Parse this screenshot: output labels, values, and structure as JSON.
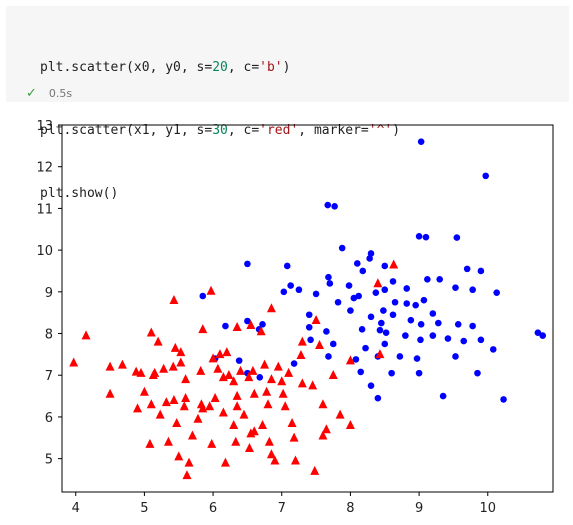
{
  "notebook": {
    "code_lines": [
      [
        {
          "t": "plt.scatter(x0, y0, s=",
          "c": ""
        },
        {
          "t": "20",
          "c": "kw"
        },
        {
          "t": ", c=",
          "c": ""
        },
        {
          "t": "'b'",
          "c": "str"
        },
        {
          "t": ")",
          "c": ""
        }
      ],
      [
        {
          "t": "plt.scatter(x1, y1, s=",
          "c": ""
        },
        {
          "t": "30",
          "c": "kw"
        },
        {
          "t": ", c=",
          "c": ""
        },
        {
          "t": "'red'",
          "c": "str"
        },
        {
          "t": ", marker=",
          "c": ""
        },
        {
          "t": "'^'",
          "c": "str"
        },
        {
          "t": ")",
          "c": ""
        }
      ],
      [
        {
          "t": "plt.show()",
          "c": ""
        }
      ]
    ],
    "status_icon": "check-icon",
    "status_time": "0.5s"
  },
  "chart_data": {
    "type": "scatter",
    "title": "",
    "xlabel": "",
    "ylabel": "",
    "xlim": [
      3.8,
      10.95
    ],
    "ylim": [
      4.2,
      13.0
    ],
    "xticks": [
      4,
      5,
      6,
      7,
      8,
      9,
      10
    ],
    "yticks": [
      5,
      6,
      7,
      8,
      9,
      10,
      11,
      12,
      13
    ],
    "grid": false,
    "series": [
      {
        "color": "#0000ff",
        "marker": "circle",
        "points": [
          [
            9.03,
            12.6
          ],
          [
            9.97,
            11.78
          ],
          [
            7.67,
            11.08
          ],
          [
            7.77,
            11.05
          ],
          [
            9.0,
            10.33
          ],
          [
            9.1,
            10.31
          ],
          [
            9.55,
            10.3
          ],
          [
            7.88,
            10.05
          ],
          [
            8.3,
            9.92
          ],
          [
            8.28,
            9.8
          ],
          [
            6.5,
            9.67
          ],
          [
            7.08,
            9.62
          ],
          [
            8.1,
            9.68
          ],
          [
            8.5,
            9.62
          ],
          [
            9.7,
            9.55
          ],
          [
            9.9,
            9.5
          ],
          [
            7.68,
            9.35
          ],
          [
            8.62,
            9.25
          ],
          [
            9.12,
            9.3
          ],
          [
            9.3,
            9.3
          ],
          [
            8.18,
            9.5
          ],
          [
            7.03,
            9.0
          ],
          [
            7.13,
            9.15
          ],
          [
            7.25,
            9.05
          ],
          [
            7.5,
            8.95
          ],
          [
            7.7,
            9.2
          ],
          [
            7.98,
            9.15
          ],
          [
            8.5,
            9.05
          ],
          [
            8.82,
            9.08
          ],
          [
            9.53,
            9.1
          ],
          [
            9.78,
            9.05
          ],
          [
            10.13,
            8.98
          ],
          [
            5.85,
            8.9
          ],
          [
            8.05,
            8.85
          ],
          [
            8.12,
            8.9
          ],
          [
            8.37,
            8.98
          ],
          [
            8.65,
            8.75
          ],
          [
            8.82,
            8.72
          ],
          [
            8.48,
            8.55
          ],
          [
            9.07,
            8.8
          ],
          [
            9.2,
            8.48
          ],
          [
            8.3,
            8.4
          ],
          [
            8.45,
            8.25
          ],
          [
            8.62,
            8.45
          ],
          [
            8.95,
            8.68
          ],
          [
            7.82,
            8.75
          ],
          [
            6.5,
            8.3
          ],
          [
            6.72,
            8.22
          ],
          [
            7.4,
            8.45
          ],
          [
            8.0,
            8.55
          ],
          [
            8.88,
            8.32
          ],
          [
            9.03,
            8.22
          ],
          [
            9.28,
            8.25
          ],
          [
            9.57,
            8.22
          ],
          [
            9.78,
            8.18
          ],
          [
            6.18,
            8.18
          ],
          [
            6.67,
            8.1
          ],
          [
            7.4,
            8.15
          ],
          [
            7.65,
            8.05
          ],
          [
            8.17,
            8.1
          ],
          [
            8.43,
            8.08
          ],
          [
            8.52,
            8.02
          ],
          [
            8.8,
            7.95
          ],
          [
            9.2,
            7.95
          ],
          [
            9.9,
            7.85
          ],
          [
            10.73,
            8.02
          ],
          [
            10.8,
            7.95
          ],
          [
            7.42,
            7.85
          ],
          [
            7.75,
            7.75
          ],
          [
            8.22,
            7.65
          ],
          [
            8.5,
            7.75
          ],
          [
            9.02,
            7.85
          ],
          [
            9.42,
            7.88
          ],
          [
            9.65,
            7.82
          ],
          [
            10.08,
            7.62
          ],
          [
            7.68,
            7.45
          ],
          [
            8.08,
            7.38
          ],
          [
            8.4,
            7.45
          ],
          [
            8.72,
            7.45
          ],
          [
            8.97,
            7.4
          ],
          [
            9.53,
            7.45
          ],
          [
            6.03,
            7.4
          ],
          [
            6.38,
            7.35
          ],
          [
            7.18,
            7.28
          ],
          [
            8.15,
            7.08
          ],
          [
            8.6,
            7.05
          ],
          [
            9.0,
            7.05
          ],
          [
            9.85,
            7.05
          ],
          [
            6.5,
            7.05
          ],
          [
            6.68,
            6.95
          ],
          [
            8.3,
            6.75
          ],
          [
            8.4,
            6.45
          ],
          [
            9.35,
            6.5
          ],
          [
            10.23,
            6.42
          ]
        ]
      },
      {
        "color": "#ff0000",
        "marker": "triangle-up",
        "points": [
          [
            5.43,
            8.8
          ],
          [
            5.97,
            9.02
          ],
          [
            6.85,
            8.6
          ],
          [
            7.5,
            8.32
          ],
          [
            8.63,
            9.65
          ],
          [
            8.4,
            9.2
          ],
          [
            4.15,
            7.95
          ],
          [
            5.1,
            8.02
          ],
          [
            5.85,
            8.1
          ],
          [
            6.35,
            8.15
          ],
          [
            6.55,
            8.2
          ],
          [
            6.7,
            8.05
          ],
          [
            5.2,
            7.8
          ],
          [
            5.45,
            7.65
          ],
          [
            5.53,
            7.55
          ],
          [
            6.2,
            7.55
          ],
          [
            7.3,
            7.8
          ],
          [
            7.55,
            7.72
          ],
          [
            6.0,
            7.4
          ],
          [
            6.1,
            7.5
          ],
          [
            7.28,
            7.48
          ],
          [
            8.43,
            7.5
          ],
          [
            8.0,
            7.35
          ],
          [
            3.97,
            7.3
          ],
          [
            4.5,
            7.2
          ],
          [
            4.68,
            7.25
          ],
          [
            4.88,
            7.08
          ],
          [
            4.95,
            7.05
          ],
          [
            5.15,
            7.05
          ],
          [
            5.28,
            7.15
          ],
          [
            5.42,
            7.2
          ],
          [
            5.53,
            7.3
          ],
          [
            5.82,
            7.1
          ],
          [
            6.07,
            7.15
          ],
          [
            6.23,
            7.0
          ],
          [
            6.4,
            7.1
          ],
          [
            6.58,
            7.1
          ],
          [
            6.75,
            7.25
          ],
          [
            6.95,
            7.2
          ],
          [
            7.1,
            7.05
          ],
          [
            7.75,
            7.0
          ],
          [
            5.13,
            7.0
          ],
          [
            5.6,
            6.9
          ],
          [
            6.15,
            6.95
          ],
          [
            6.3,
            6.85
          ],
          [
            6.52,
            6.95
          ],
          [
            6.85,
            6.9
          ],
          [
            7.0,
            6.85
          ],
          [
            7.3,
            6.8
          ],
          [
            7.45,
            6.75
          ],
          [
            4.5,
            6.55
          ],
          [
            5.0,
            6.6
          ],
          [
            5.43,
            6.4
          ],
          [
            5.6,
            6.45
          ],
          [
            5.83,
            6.3
          ],
          [
            6.03,
            6.45
          ],
          [
            6.35,
            6.5
          ],
          [
            6.6,
            6.55
          ],
          [
            6.78,
            6.6
          ],
          [
            7.02,
            6.55
          ],
          [
            7.6,
            6.3
          ],
          [
            4.9,
            6.2
          ],
          [
            5.1,
            6.3
          ],
          [
            5.32,
            6.35
          ],
          [
            5.58,
            6.25
          ],
          [
            5.85,
            6.2
          ],
          [
            5.95,
            6.25
          ],
          [
            6.15,
            6.1
          ],
          [
            6.35,
            6.25
          ],
          [
            6.45,
            6.05
          ],
          [
            6.8,
            6.3
          ],
          [
            7.05,
            6.25
          ],
          [
            5.23,
            6.05
          ],
          [
            5.47,
            5.85
          ],
          [
            5.78,
            5.95
          ],
          [
            6.3,
            5.8
          ],
          [
            6.55,
            5.6
          ],
          [
            6.72,
            5.8
          ],
          [
            7.15,
            5.85
          ],
          [
            7.65,
            5.7
          ],
          [
            7.85,
            6.05
          ],
          [
            8.0,
            5.8
          ],
          [
            5.08,
            5.35
          ],
          [
            5.35,
            5.4
          ],
          [
            5.7,
            5.55
          ],
          [
            5.98,
            5.35
          ],
          [
            6.33,
            5.4
          ],
          [
            6.53,
            5.25
          ],
          [
            6.82,
            5.4
          ],
          [
            7.18,
            5.5
          ],
          [
            7.6,
            5.55
          ],
          [
            5.5,
            5.05
          ],
          [
            6.18,
            4.9
          ],
          [
            6.85,
            5.1
          ],
          [
            6.9,
            4.95
          ],
          [
            7.2,
            4.95
          ],
          [
            7.48,
            4.7
          ],
          [
            5.62,
            4.6
          ],
          [
            5.65,
            4.9
          ],
          [
            6.6,
            5.65
          ]
        ]
      }
    ]
  }
}
